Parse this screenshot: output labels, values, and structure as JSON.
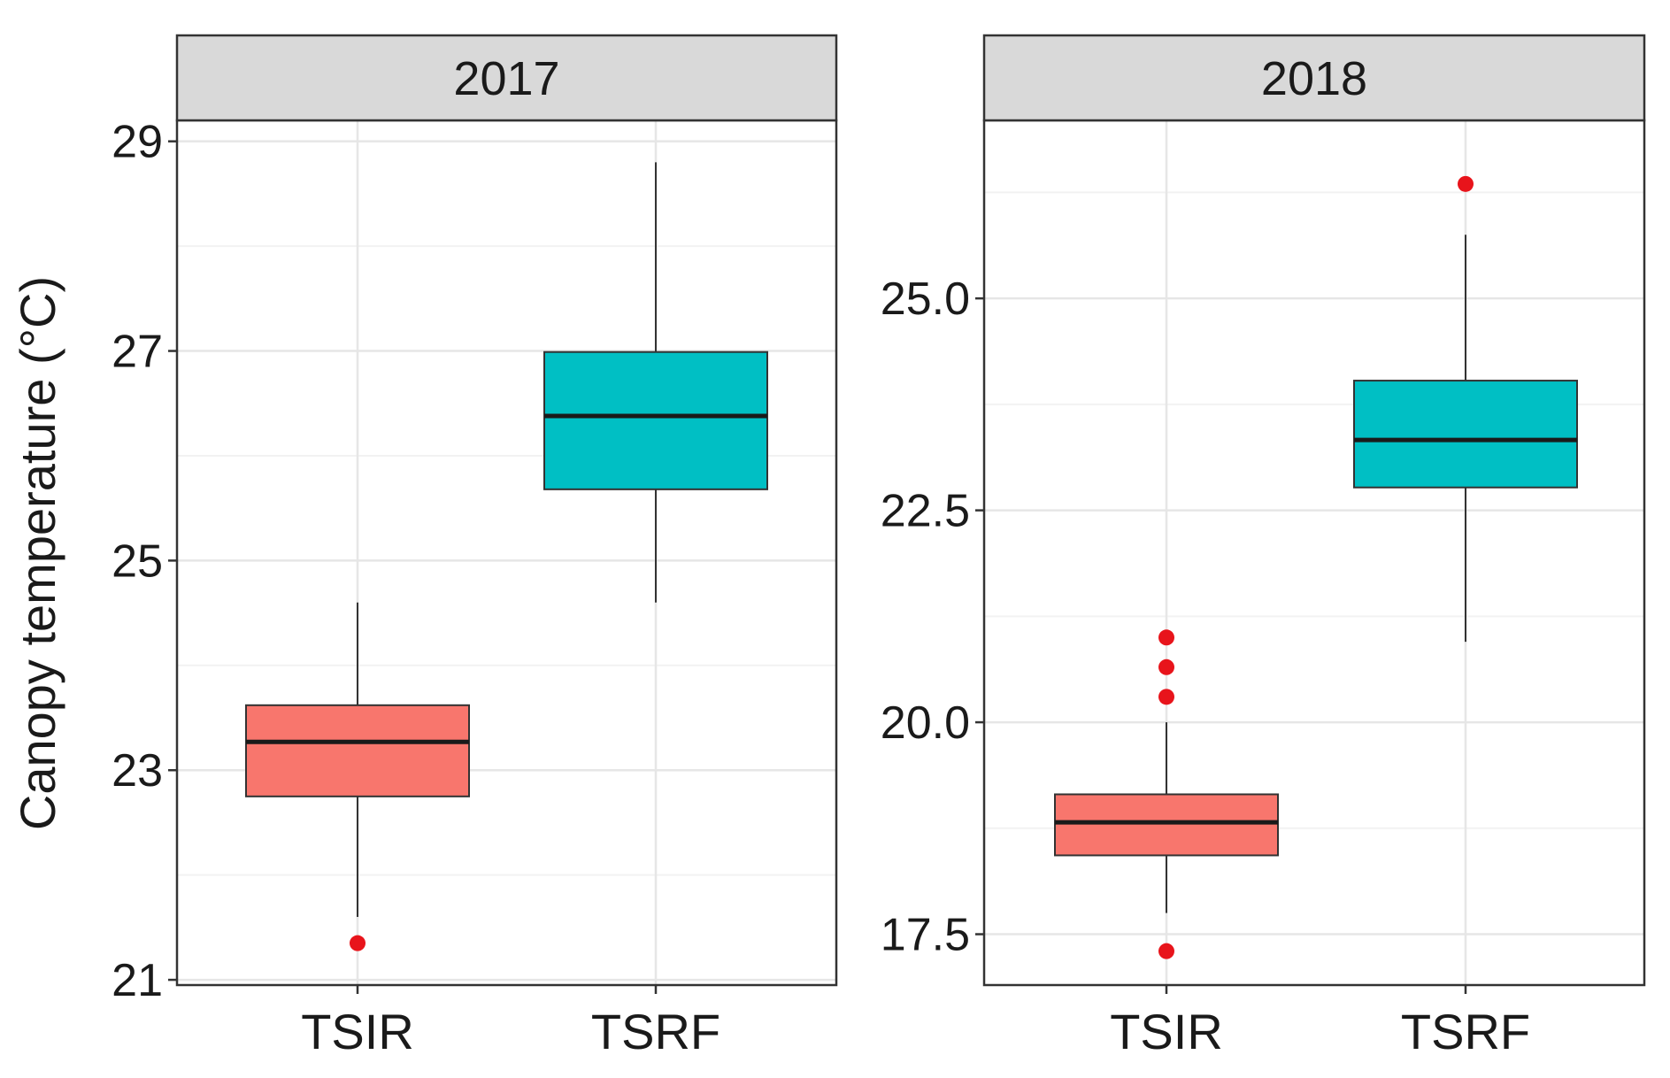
{
  "chart_data": {
    "type": "boxplot",
    "ylabel": "Canopy temperature (°C)",
    "xlabel": "",
    "categories": [
      "TSIR",
      "TSRF"
    ],
    "colors": {
      "TSIR": "#F8766D",
      "TSRF": "#00BFC4",
      "outlier": "#E8141B",
      "strip": "#D9D9D9"
    },
    "panels": [
      {
        "title": "2017",
        "ylim": [
          20.95,
          29.2
        ],
        "ticks": [
          21,
          23,
          25,
          27,
          29
        ],
        "tick_labels": [
          "21",
          "23",
          "25",
          "27",
          "29"
        ],
        "minor_ticks": [
          22,
          24,
          26,
          28
        ],
        "boxes": [
          {
            "category": "TSIR",
            "whisker_low": 21.6,
            "q1": 22.75,
            "median": 23.27,
            "q3": 23.62,
            "whisker_high": 24.6,
            "outliers": [
              21.35
            ]
          },
          {
            "category": "TSRF",
            "whisker_low": 24.6,
            "q1": 25.68,
            "median": 26.38,
            "q3": 26.99,
            "whisker_high": 28.8,
            "outliers": []
          }
        ]
      },
      {
        "title": "2018",
        "ylim": [
          16.9,
          27.1
        ],
        "ticks": [
          17.5,
          20.0,
          22.5,
          25.0
        ],
        "tick_labels": [
          "17.5",
          "20.0",
          "22.5",
          "25.0"
        ],
        "minor_ticks": [
          18.75,
          21.25,
          23.75,
          26.25
        ],
        "boxes": [
          {
            "category": "TSIR",
            "whisker_low": 17.75,
            "q1": 18.43,
            "median": 18.82,
            "q3": 19.15,
            "whisker_high": 20.0,
            "outliers": [
              17.3,
              20.3,
              20.65,
              21.0
            ]
          },
          {
            "category": "TSRF",
            "whisker_low": 20.95,
            "q1": 22.77,
            "median": 23.33,
            "q3": 24.03,
            "whisker_high": 25.75,
            "outliers": [
              26.35
            ]
          }
        ]
      }
    ]
  }
}
